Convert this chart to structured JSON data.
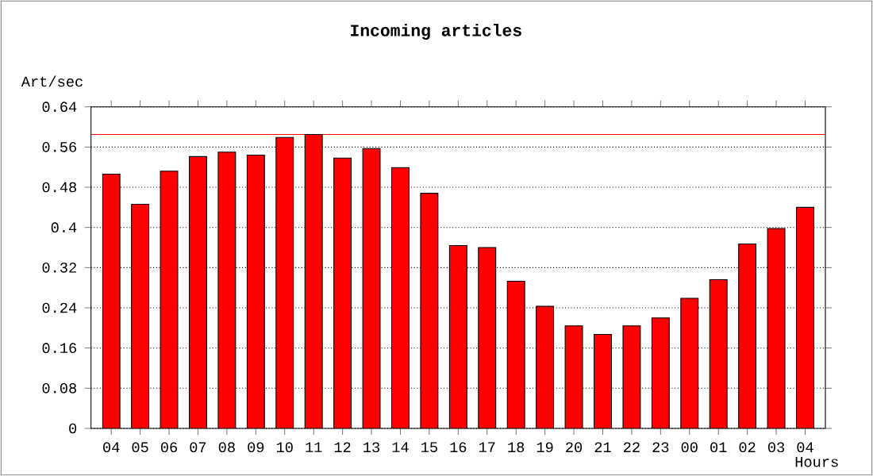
{
  "chart_data": {
    "type": "bar",
    "title": "Incoming articles",
    "ylabel": "Art/sec",
    "xlabel": "Hours",
    "categories": [
      "04",
      "05",
      "06",
      "07",
      "08",
      "09",
      "10",
      "11",
      "12",
      "13",
      "14",
      "15",
      "16",
      "17",
      "18",
      "19",
      "20",
      "21",
      "22",
      "23",
      "00",
      "01",
      "02",
      "03",
      "04"
    ],
    "values": [
      0.506,
      0.446,
      0.512,
      0.541,
      0.55,
      0.544,
      0.579,
      0.585,
      0.538,
      0.557,
      0.519,
      0.468,
      0.364,
      0.36,
      0.293,
      0.243,
      0.204,
      0.187,
      0.204,
      0.22,
      0.259,
      0.296,
      0.367,
      0.398,
      0.44
    ],
    "color": "#ff0000",
    "ylim": [
      0,
      0.64
    ],
    "yticks": [
      0,
      0.08,
      0.16,
      0.24,
      0.32,
      0.4,
      0.48,
      0.56,
      0.64
    ],
    "grid": "y",
    "line_style": "dotted",
    "ref_lines": [
      {
        "axis": "y",
        "value": 0.585,
        "color": "#ff0000"
      }
    ]
  }
}
